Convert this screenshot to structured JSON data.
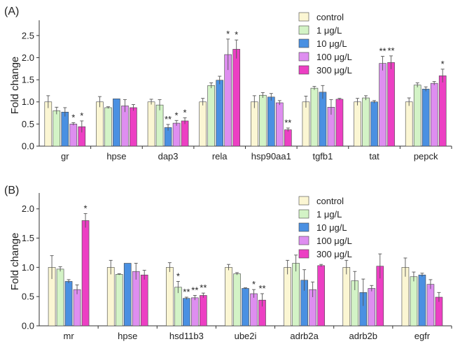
{
  "chart_data": [
    {
      "type": "bar",
      "panel_label": "(A)",
      "ylabel": "Fold change",
      "ylim": [
        0,
        2.75
      ],
      "yticks": [
        "0.0",
        "0.5",
        "1.0",
        "1.5",
        "2.0",
        "2.5"
      ],
      "categories": [
        "gr",
        "hpse",
        "dap3",
        "rela",
        "hsp90aa1",
        "tgfb1",
        "tat",
        "pepck"
      ],
      "series": [
        {
          "name": "control",
          "color": "#fbf6d3",
          "values": [
            1.0,
            1.0,
            1.0,
            1.0,
            1.0,
            1.0,
            1.0,
            1.0
          ],
          "errors": [
            0.14,
            0.12,
            0.06,
            0.08,
            0.14,
            0.13,
            0.08,
            0.09
          ],
          "sig": [
            "",
            "",
            "",
            "",
            "",
            "",
            "",
            ""
          ]
        },
        {
          "name": "1 μg/L",
          "color": "#d3f3c6",
          "values": [
            0.8,
            0.87,
            0.93,
            1.37,
            1.15,
            1.31,
            1.09,
            1.38
          ],
          "errors": [
            0.08,
            0.02,
            0.12,
            0.06,
            0.06,
            0.04,
            0.05,
            0.05
          ],
          "sig": [
            "",
            "",
            "",
            "",
            "",
            "",
            "",
            ""
          ]
        },
        {
          "name": "10 μg/L",
          "color": "#4a90e2",
          "values": [
            0.77,
            1.07,
            0.42,
            1.49,
            1.11,
            1.22,
            1.0,
            1.29
          ],
          "errors": [
            0.1,
            0.0,
            0.07,
            0.09,
            0.08,
            0.15,
            0.03,
            0.05
          ],
          "sig": [
            "",
            "",
            "**",
            "",
            "",
            "",
            "",
            ""
          ]
        },
        {
          "name": "100 μg/L",
          "color": "#de8ef0",
          "values": [
            0.5,
            0.91,
            0.52,
            2.07,
            0.98,
            0.88,
            1.87,
            1.42
          ],
          "errors": [
            0.03,
            0.14,
            0.06,
            0.35,
            0.05,
            0.17,
            0.16,
            0.04
          ],
          "sig": [
            "*",
            "",
            "*",
            "*",
            "",
            "",
            "**",
            ""
          ]
        },
        {
          "name": "300 μg/L",
          "color": "#ec3fc3",
          "values": [
            0.44,
            0.87,
            0.57,
            2.19,
            0.37,
            1.06,
            1.89,
            1.59
          ],
          "errors": [
            0.13,
            0.07,
            0.07,
            0.21,
            0.04,
            0.02,
            0.15,
            0.15
          ],
          "sig": [
            "*",
            "",
            "*",
            "*",
            "**",
            "",
            "**",
            "*"
          ]
        }
      ],
      "legend_placement": "top-right"
    },
    {
      "type": "bar",
      "panel_label": "(B)",
      "ylabel": "Fold change",
      "ylim": [
        0,
        2.2
      ],
      "yticks": [
        "0.0",
        "0.5",
        "1.0",
        "1.5",
        "2.0"
      ],
      "categories": [
        "mr",
        "hpse",
        "hsd11b3",
        "ube2i",
        "adrb2a",
        "adrb2b",
        "egfr"
      ],
      "series": [
        {
          "name": "control",
          "color": "#fbf6d3",
          "values": [
            1.0,
            1.0,
            1.0,
            1.0,
            1.0,
            1.0,
            1.0
          ],
          "errors": [
            0.2,
            0.12,
            0.08,
            0.05,
            0.12,
            0.12,
            0.16
          ],
          "sig": [
            "",
            "",
            "",
            "",
            "",
            "",
            ""
          ]
        },
        {
          "name": "1 μg/L",
          "color": "#d3f3c6",
          "values": [
            0.97,
            0.88,
            0.66,
            0.89,
            1.07,
            0.77,
            0.84
          ],
          "errors": [
            0.04,
            0.01,
            0.1,
            0.02,
            0.14,
            0.16,
            0.08
          ],
          "sig": [
            "",
            "",
            "*",
            "",
            "",
            "",
            ""
          ]
        },
        {
          "name": "10 μg/L",
          "color": "#4a90e2",
          "values": [
            0.76,
            1.07,
            0.47,
            0.64,
            0.78,
            0.57,
            0.87
          ],
          "errors": [
            0.03,
            0.0,
            0.02,
            0.01,
            0.18,
            0.23,
            0.03
          ],
          "sig": [
            "",
            "",
            "**",
            "",
            "",
            "",
            ""
          ]
        },
        {
          "name": "100 μg/L",
          "color": "#de8ef0",
          "values": [
            0.62,
            0.93,
            0.48,
            0.55,
            0.62,
            0.64,
            0.71
          ],
          "errors": [
            0.08,
            0.14,
            0.04,
            0.07,
            0.13,
            0.05,
            0.08
          ],
          "sig": [
            "",
            "",
            "**",
            "*",
            "",
            "",
            ""
          ]
        },
        {
          "name": "300 μg/L",
          "color": "#ec3fc3",
          "values": [
            1.8,
            0.87,
            0.52,
            0.44,
            1.03,
            1.02,
            0.49
          ],
          "errors": [
            0.12,
            0.08,
            0.04,
            0.11,
            0.02,
            0.21,
            0.08
          ],
          "sig": [
            "*",
            "",
            "**",
            "**",
            "",
            "",
            ""
          ]
        }
      ],
      "legend_placement": "top-right"
    }
  ]
}
